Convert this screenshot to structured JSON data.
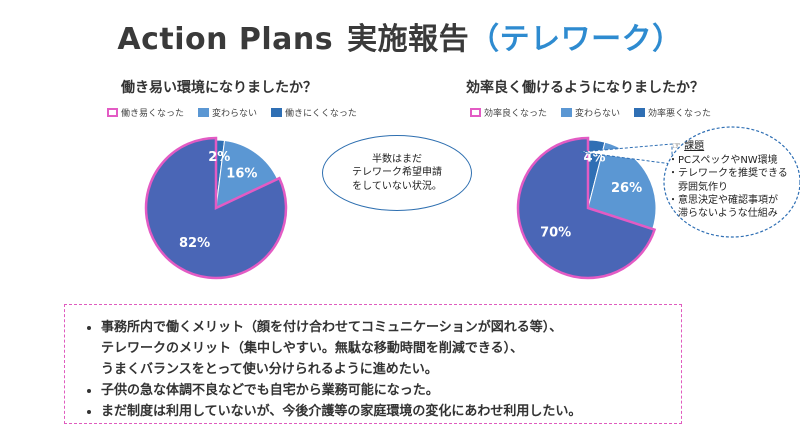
{
  "title": {
    "part1": "Action Plans",
    "part2": "実施報告",
    "part3": "（テレワーク）"
  },
  "colors": {
    "dark_blue": "#4a66b6",
    "mid_blue": "#5b97d3",
    "small_blue": "#2f6fb4",
    "magenta": "#e35bc4",
    "title_accent": "#2e8bd0"
  },
  "left": {
    "question": "働き易い環境になりましたか？"
  },
  "right": {
    "question": "効率良く働けるようになりましたか？"
  },
  "bubble": {
    "line1": "半数はまだ",
    "line2": "テレワーク希望申請",
    "line3": "をしていない状況。"
  },
  "issues": {
    "icon": "pointing-hand-icon",
    "heading": "課題",
    "items": [
      "・PCスペックやNW環境",
      "・テレワークを推奨できる",
      "雰囲気作り",
      "・意思決定や確認事項が",
      "滞らないような仕組み"
    ]
  },
  "comments": [
    {
      "lines": [
        "事務所内で働くメリット（顔を付け合わせてコミュニケーションが図れる等）、",
        "テレワークのメリット（集中しやすい。無駄な移動時間を削減できる）、",
        "うまくバランスをとって使い分けられるように進めたい。"
      ]
    },
    {
      "lines": [
        "子供の急な体調不良などでも自宅から業務可能になった。"
      ]
    },
    {
      "lines": [
        "まだ制度は利用していないが、今後介護等の家庭環境の変化にあわせ利用したい。"
      ]
    }
  ],
  "chart_data": [
    {
      "type": "pie",
      "title": "働き易い環境になりましたか？",
      "categories": [
        "働き易くなった",
        "変わらない",
        "働きにくくなった"
      ],
      "values": [
        82,
        16,
        2
      ],
      "labels": [
        "82%",
        "16%",
        "2%"
      ],
      "colors": [
        "#4a66b6",
        "#5b97d3",
        "#2f6fb4"
      ],
      "highlight": "働き易くなった",
      "legend": "top"
    },
    {
      "type": "pie",
      "title": "効率良く働けるようになりましたか？",
      "categories": [
        "効率良くなった",
        "変わらない",
        "効率悪くなった"
      ],
      "values": [
        70,
        26,
        4
      ],
      "labels": [
        "70%",
        "26%",
        "4%"
      ],
      "colors": [
        "#4a66b6",
        "#5b97d3",
        "#2f6fb4"
      ],
      "highlight": "効率良くなった",
      "legend": "top"
    }
  ]
}
